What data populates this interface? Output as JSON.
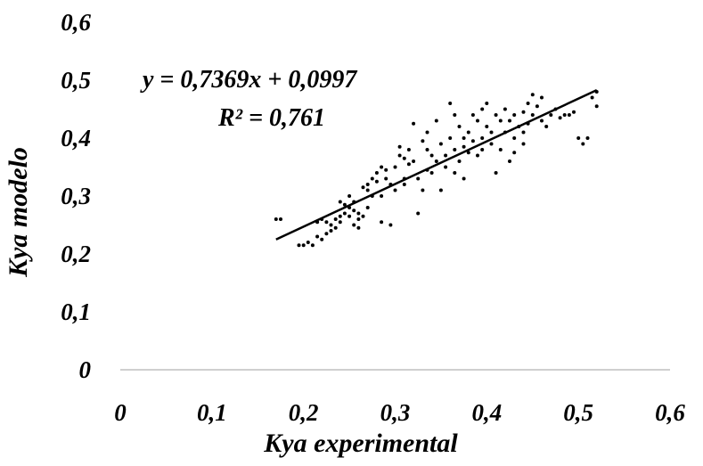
{
  "chart_data": {
    "type": "scatter",
    "xlabel": "Kya experimental",
    "ylabel": "Kya modelo",
    "xlim": [
      0,
      0.6
    ],
    "ylim": [
      0,
      0.6
    ],
    "x_ticks": [
      "0",
      "0,1",
      "0,2",
      "0,3",
      "0,4",
      "0,5",
      "0,6"
    ],
    "y_ticks": [
      "0",
      "0,1",
      "0,2",
      "0,3",
      "0,4",
      "0,5",
      "0,6"
    ],
    "grid": false,
    "legend": "none",
    "trendline": {
      "slope": 0.7369,
      "intercept": 0.0997,
      "x_range": [
        0.17,
        0.52
      ],
      "equation_label": "y = 0,7369x + 0,0997",
      "r2_label": "R² = 0,761"
    },
    "series": [
      {
        "marker_color": "#000000",
        "points": [
          [
            0.17,
            0.26
          ],
          [
            0.175,
            0.26
          ],
          [
            0.195,
            0.215
          ],
          [
            0.2,
            0.215
          ],
          [
            0.205,
            0.22
          ],
          [
            0.21,
            0.215
          ],
          [
            0.215,
            0.23
          ],
          [
            0.22,
            0.225
          ],
          [
            0.22,
            0.26
          ],
          [
            0.225,
            0.255
          ],
          [
            0.225,
            0.235
          ],
          [
            0.23,
            0.25
          ],
          [
            0.23,
            0.24
          ],
          [
            0.235,
            0.26
          ],
          [
            0.235,
            0.245
          ],
          [
            0.24,
            0.255
          ],
          [
            0.24,
            0.265
          ],
          [
            0.24,
            0.29
          ],
          [
            0.245,
            0.285
          ],
          [
            0.245,
            0.27
          ],
          [
            0.25,
            0.28
          ],
          [
            0.25,
            0.265
          ],
          [
            0.25,
            0.3
          ],
          [
            0.255,
            0.275
          ],
          [
            0.255,
            0.29
          ],
          [
            0.26,
            0.27
          ],
          [
            0.26,
            0.245
          ],
          [
            0.26,
            0.26
          ],
          [
            0.265,
            0.265
          ],
          [
            0.265,
            0.315
          ],
          [
            0.27,
            0.31
          ],
          [
            0.27,
            0.32
          ],
          [
            0.275,
            0.33
          ],
          [
            0.275,
            0.3
          ],
          [
            0.28,
            0.325
          ],
          [
            0.28,
            0.34
          ],
          [
            0.285,
            0.35
          ],
          [
            0.285,
            0.255
          ],
          [
            0.29,
            0.33
          ],
          [
            0.29,
            0.345
          ],
          [
            0.295,
            0.32
          ],
          [
            0.295,
            0.25
          ],
          [
            0.3,
            0.31
          ],
          [
            0.305,
            0.37
          ],
          [
            0.305,
            0.385
          ],
          [
            0.31,
            0.32
          ],
          [
            0.31,
            0.33
          ],
          [
            0.315,
            0.355
          ],
          [
            0.315,
            0.38
          ],
          [
            0.32,
            0.36
          ],
          [
            0.32,
            0.425
          ],
          [
            0.325,
            0.33
          ],
          [
            0.325,
            0.27
          ],
          [
            0.33,
            0.395
          ],
          [
            0.33,
            0.31
          ],
          [
            0.335,
            0.345
          ],
          [
            0.335,
            0.38
          ],
          [
            0.34,
            0.37
          ],
          [
            0.34,
            0.34
          ],
          [
            0.345,
            0.36
          ],
          [
            0.345,
            0.43
          ],
          [
            0.35,
            0.39
          ],
          [
            0.35,
            0.31
          ],
          [
            0.355,
            0.37
          ],
          [
            0.355,
            0.35
          ],
          [
            0.36,
            0.46
          ],
          [
            0.36,
            0.4
          ],
          [
            0.365,
            0.38
          ],
          [
            0.365,
            0.44
          ],
          [
            0.37,
            0.42
          ],
          [
            0.37,
            0.36
          ],
          [
            0.375,
            0.385
          ],
          [
            0.375,
            0.33
          ],
          [
            0.38,
            0.375
          ],
          [
            0.38,
            0.41
          ],
          [
            0.385,
            0.44
          ],
          [
            0.385,
            0.395
          ],
          [
            0.39,
            0.37
          ],
          [
            0.39,
            0.43
          ],
          [
            0.395,
            0.45
          ],
          [
            0.395,
            0.4
          ],
          [
            0.4,
            0.42
          ],
          [
            0.4,
            0.46
          ],
          [
            0.405,
            0.39
          ],
          [
            0.405,
            0.41
          ],
          [
            0.41,
            0.44
          ],
          [
            0.41,
            0.34
          ],
          [
            0.415,
            0.43
          ],
          [
            0.415,
            0.38
          ],
          [
            0.42,
            0.45
          ],
          [
            0.42,
            0.41
          ],
          [
            0.425,
            0.36
          ],
          [
            0.425,
            0.43
          ],
          [
            0.43,
            0.4
          ],
          [
            0.43,
            0.44
          ],
          [
            0.435,
            0.42
          ],
          [
            0.44,
            0.445
          ],
          [
            0.44,
            0.39
          ],
          [
            0.445,
            0.46
          ],
          [
            0.445,
            0.425
          ],
          [
            0.45,
            0.475
          ],
          [
            0.45,
            0.44
          ],
          [
            0.455,
            0.455
          ],
          [
            0.46,
            0.47
          ],
          [
            0.46,
            0.43
          ],
          [
            0.465,
            0.42
          ],
          [
            0.47,
            0.44
          ],
          [
            0.475,
            0.45
          ],
          [
            0.48,
            0.435
          ],
          [
            0.485,
            0.44
          ],
          [
            0.49,
            0.44
          ],
          [
            0.495,
            0.445
          ],
          [
            0.5,
            0.4
          ],
          [
            0.505,
            0.39
          ],
          [
            0.51,
            0.4
          ],
          [
            0.515,
            0.47
          ],
          [
            0.52,
            0.455
          ],
          [
            0.52,
            0.48
          ],
          [
            0.27,
            0.28
          ],
          [
            0.255,
            0.25
          ],
          [
            0.31,
            0.365
          ],
          [
            0.335,
            0.41
          ],
          [
            0.365,
            0.34
          ],
          [
            0.375,
            0.4
          ],
          [
            0.395,
            0.38
          ],
          [
            0.43,
            0.375
          ],
          [
            0.44,
            0.41
          ],
          [
            0.3,
            0.35
          ],
          [
            0.285,
            0.3
          ],
          [
            0.215,
            0.255
          ]
        ]
      }
    ]
  }
}
